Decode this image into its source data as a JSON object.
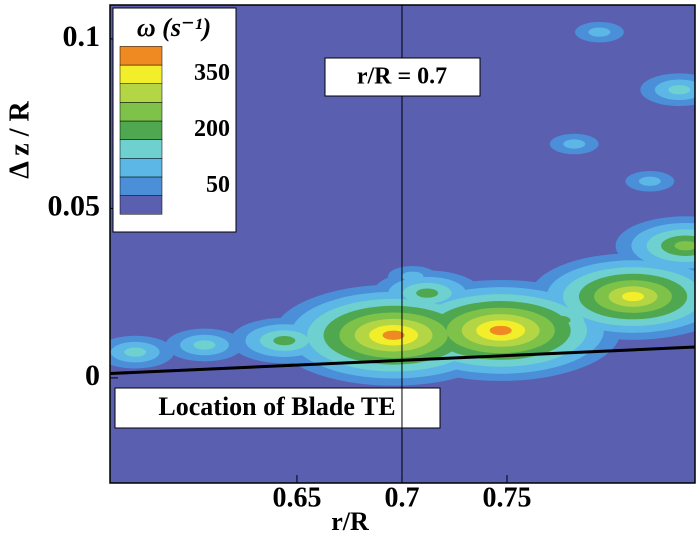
{
  "chart_data": {
    "type": "contour",
    "x_label": "r/R",
    "y_label": "Δ z / R",
    "xlim": [
      0.561,
      0.8395
    ],
    "ylim": [
      -0.031,
      0.11
    ],
    "xticks": [
      0.65,
      0.7,
      0.75
    ],
    "yticks": [
      0,
      0.05,
      0.1
    ],
    "legend_title": "ω (s⁻¹)",
    "levels": [
      0,
      50,
      100,
      150,
      200,
      250,
      300,
      350,
      400
    ],
    "level_colors": [
      "#5a5fb0",
      "#4b8fd8",
      "#5cb7e6",
      "#6ed0cf",
      "#4fa84f",
      "#7ec24a",
      "#b5d644",
      "#f2ee2a",
      "#ef8a22"
    ],
    "legend_ticks": [
      50,
      200,
      350
    ],
    "x": [
      0.573,
      0.606,
      0.644,
      0.696,
      0.705,
      0.712,
      0.747,
      0.775,
      0.81,
      0.835,
      0.832,
      0.794,
      0.782,
      0.818
    ],
    "y": [
      0.0076,
      0.0097,
      0.011,
      0.0126,
      0.03,
      0.025,
      0.014,
      0.017,
      0.024,
      0.039,
      0.085,
      0.102,
      0.069,
      0.058
    ],
    "values": [
      150,
      150,
      200,
      400,
      100,
      200,
      400,
      200,
      350,
      250,
      150,
      100,
      100,
      100
    ],
    "vline": {
      "x": 0.7,
      "label": "r/R = 0.7"
    },
    "te_line": {
      "x": [
        0.561,
        0.8395
      ],
      "y": [
        0.0013,
        0.0091
      ],
      "label": "Location of Blade TE"
    }
  }
}
